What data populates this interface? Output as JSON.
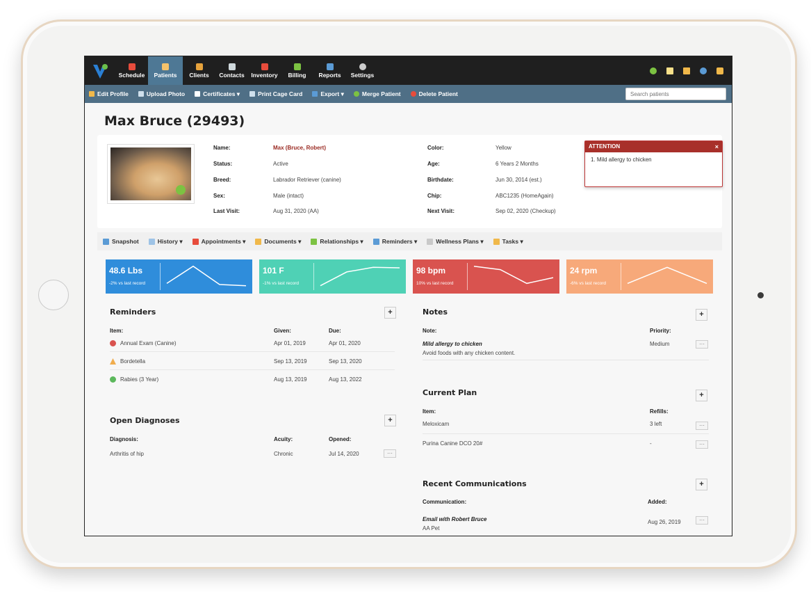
{
  "nav": {
    "items": [
      {
        "label": "Schedule",
        "color": "#e74c3c"
      },
      {
        "label": "Patients",
        "color": "#f5c36b"
      },
      {
        "label": "Clients",
        "color": "#e6a23c"
      },
      {
        "label": "Contacts",
        "color": "#cfd8dc"
      },
      {
        "label": "Inventory",
        "color": "#e74c3c"
      },
      {
        "label": "Billing",
        "color": "#7cc242"
      },
      {
        "label": "Reports",
        "color": "#5b9bd5"
      },
      {
        "label": "Settings",
        "color": "#cccccc"
      }
    ],
    "active": "Patients"
  },
  "toolbar": {
    "edit_profile": "Edit Profile",
    "upload_photo": "Upload Photo",
    "certificates": "Certificates ▾",
    "print_cage_card": "Print Cage Card",
    "export": "Export ▾",
    "merge_patient": "Merge Patient",
    "delete_patient": "Delete Patient",
    "search_placeholder": "Search patients"
  },
  "patient": {
    "title": "Max Bruce (29493)",
    "labels": {
      "name": "Name:",
      "status": "Status:",
      "breed": "Breed:",
      "sex": "Sex:",
      "last_visit": "Last Visit:",
      "color": "Color:",
      "age": "Age:",
      "birthdate": "Birthdate:",
      "chip": "Chip:",
      "next_visit": "Next Visit:"
    },
    "values": {
      "name": "Max (Bruce, Robert)",
      "status": "Active",
      "breed": "Labrador Retriever (canine)",
      "sex": "Male (intact)",
      "last_visit": "Aug 31, 2020 (AA)",
      "color": "Yellow",
      "age": "6 Years 2 Months",
      "birthdate": "Jun 30, 2014 (est.)",
      "chip": "ABC1235 (HomeAgain)",
      "next_visit": "Sep 02, 2020 (Checkup)"
    }
  },
  "attention": {
    "header": "ATTENTION",
    "close": "×",
    "text": "1. Mild allergy to chicken"
  },
  "tabs": [
    {
      "label": "Snapshot",
      "color": "#5b9bd5"
    },
    {
      "label": "History ▾",
      "color": "#9ec3e6"
    },
    {
      "label": "Appointments ▾",
      "color": "#e74c3c"
    },
    {
      "label": "Documents ▾",
      "color": "#f0b84a"
    },
    {
      "label": "Relationships ▾",
      "color": "#7cc242"
    },
    {
      "label": "Reminders ▾",
      "color": "#5b9bd5"
    },
    {
      "label": "Wellness Plans ▾",
      "color": "#c9c9c9"
    },
    {
      "label": "Tasks ▾",
      "color": "#f0b84a"
    }
  ],
  "vitals": [
    {
      "value": "48.6 Lbs",
      "sub": "-2% vs last record",
      "color": "#2f8ddb",
      "trend": [
        0.2,
        0.95,
        0.15,
        0.1
      ]
    },
    {
      "value": "101 F",
      "sub": "-1% vs last record",
      "color": "#4fd1b5",
      "trend": [
        0.1,
        0.7,
        0.9,
        0.88
      ]
    },
    {
      "value": "98 bpm",
      "sub": "10% vs last record",
      "color": "#d9534f",
      "trend": [
        0.95,
        0.8,
        0.2,
        0.45
      ]
    },
    {
      "value": "24 rpm",
      "sub": "-6% vs last record",
      "color": "#f7a97a",
      "trend": [
        0.2,
        0.9,
        0.2
      ]
    }
  ],
  "reminders": {
    "title": "Reminders",
    "headers": {
      "item": "Item:",
      "given": "Given:",
      "due": "Due:"
    },
    "rows": [
      {
        "item": "Annual Exam (Canine)",
        "given": "Apr 01, 2019",
        "due": "Apr 01, 2020",
        "status_color": "#d9534f"
      },
      {
        "item": "Bordetella",
        "given": "Sep 13, 2019",
        "due": "Sep 13, 2020",
        "status_color": "#f0ad4e"
      },
      {
        "item": "Rabies (3 Year)",
        "given": "Aug 13, 2019",
        "due": "Aug 13, 2022",
        "status_color": "#5cb85c"
      }
    ]
  },
  "diagnoses": {
    "title": "Open Diagnoses",
    "headers": {
      "diagnosis": "Diagnosis:",
      "acuity": "Acuity:",
      "opened": "Opened:"
    },
    "rows": [
      {
        "diagnosis": "Arthritis of hip",
        "acuity": "Chronic",
        "opened": "Jul 14, 2020"
      }
    ]
  },
  "notes": {
    "title": "Notes",
    "headers": {
      "note": "Note:",
      "priority": "Priority:"
    },
    "rows": [
      {
        "title": "Mild allergy to chicken",
        "body": "Avoid foods with any chicken content.",
        "priority": "Medium"
      }
    ]
  },
  "plan": {
    "title": "Current Plan",
    "headers": {
      "item": "Item:",
      "refills": "Refills:"
    },
    "rows": [
      {
        "item": "Meloxicam",
        "refills": "3 left"
      },
      {
        "item": "Purina Canine DCO 20#",
        "refills": "-"
      }
    ]
  },
  "communications": {
    "title": "Recent Communications",
    "headers": {
      "communication": "Communication:",
      "added": "Added:"
    },
    "rows": [
      {
        "title": "Email with Robert Bruce",
        "body": "AA Pet",
        "added": "Aug 26, 2019"
      }
    ]
  },
  "ui": {
    "plus": "+",
    "more": "···"
  }
}
